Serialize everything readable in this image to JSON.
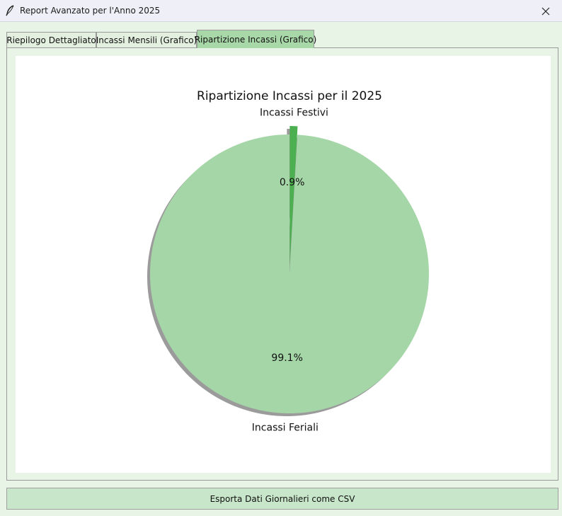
{
  "window": {
    "title": "Report Avanzato per l'Anno 2025",
    "app_icon": "feather-icon",
    "close_icon": "close-icon"
  },
  "tabs": [
    {
      "label": "Riepilogo Dettagliato",
      "active": false
    },
    {
      "label": "Incassi Mensili (Grafico)",
      "active": false
    },
    {
      "label": "Ripartizione Incassi (Grafico)",
      "active": true
    }
  ],
  "chart_data": {
    "type": "pie",
    "title": "Ripartizione Incassi per il 2025",
    "slices": [
      {
        "label": "Incassi Feriali",
        "percent": 99.1,
        "pct_label": "99.1%",
        "color": "#a5d6a7",
        "explode": false
      },
      {
        "label": "Incassi Festivi",
        "percent": 0.9,
        "pct_label": "0.9%",
        "color": "#4caf50",
        "explode": true
      }
    ],
    "shadow": true,
    "start_angle": 90
  },
  "export_button": {
    "label": "Esporta Dati Giornalieri come CSV"
  },
  "colors": {
    "window_bg": "#e8f4e6",
    "active_tab": "#a8d8a8",
    "button_bg": "#c8e6c9"
  }
}
